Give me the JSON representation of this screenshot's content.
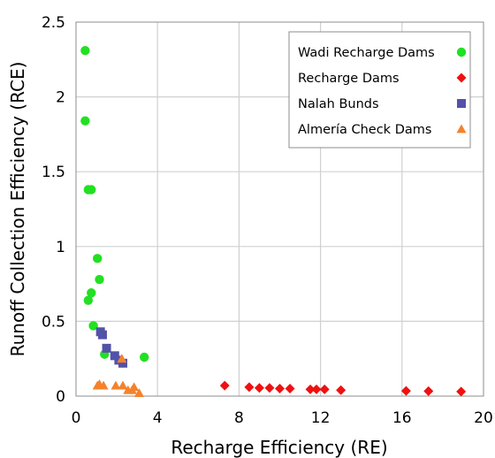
{
  "chart_data": {
    "type": "scatter",
    "xlabel": "Recharge Efficiency (RE)",
    "ylabel": "Runoff Collection Efficiency (RCE)",
    "xlim": [
      0,
      20
    ],
    "ylim": [
      0,
      2.5
    ],
    "xticks": [
      0,
      4,
      8,
      12,
      16,
      20
    ],
    "yticks": [
      0,
      0.5,
      1,
      1.5,
      2,
      2.5
    ],
    "xtick_labels": [
      "0",
      "4",
      "8",
      "12",
      "16",
      "20"
    ],
    "ytick_labels": [
      "0",
      "0.5",
      "1",
      "1.5",
      "2",
      "2.5"
    ],
    "grid": true,
    "legend_position": "top-right",
    "series": [
      {
        "name": "Wadi Recharge Dams",
        "marker": "circle",
        "color": "#22e022",
        "points": [
          [
            0.45,
            2.31
          ],
          [
            0.45,
            1.84
          ],
          [
            0.6,
            1.38
          ],
          [
            0.75,
            1.38
          ],
          [
            1.05,
            0.92
          ],
          [
            1.15,
            0.78
          ],
          [
            0.75,
            0.69
          ],
          [
            0.6,
            0.64
          ],
          [
            0.85,
            0.47
          ],
          [
            1.4,
            0.28
          ],
          [
            3.35,
            0.26
          ]
        ]
      },
      {
        "name": "Recharge Dams",
        "marker": "diamond",
        "color": "#ee1111",
        "points": [
          [
            7.3,
            0.07
          ],
          [
            8.5,
            0.06
          ],
          [
            9.0,
            0.055
          ],
          [
            9.5,
            0.055
          ],
          [
            10.0,
            0.05
          ],
          [
            10.5,
            0.05
          ],
          [
            11.5,
            0.045
          ],
          [
            11.8,
            0.045
          ],
          [
            12.2,
            0.045
          ],
          [
            13.0,
            0.04
          ],
          [
            16.2,
            0.035
          ],
          [
            17.3,
            0.033
          ],
          [
            18.9,
            0.03
          ]
        ]
      },
      {
        "name": "Nalah Bunds",
        "marker": "square",
        "color": "#5252a8",
        "points": [
          [
            1.2,
            0.43
          ],
          [
            1.3,
            0.41
          ],
          [
            1.5,
            0.32
          ],
          [
            1.9,
            0.27
          ],
          [
            2.1,
            0.24
          ],
          [
            2.3,
            0.22
          ]
        ]
      },
      {
        "name": "Almería Check Dams",
        "marker": "triangle",
        "color": "#f5822b",
        "points": [
          [
            1.05,
            0.07
          ],
          [
            1.15,
            0.08
          ],
          [
            1.35,
            0.07
          ],
          [
            1.95,
            0.07
          ],
          [
            2.3,
            0.07
          ],
          [
            2.55,
            0.04
          ],
          [
            2.75,
            0.04
          ],
          [
            2.85,
            0.06
          ],
          [
            3.1,
            0.02
          ],
          [
            2.25,
            0.25
          ]
        ]
      }
    ]
  }
}
